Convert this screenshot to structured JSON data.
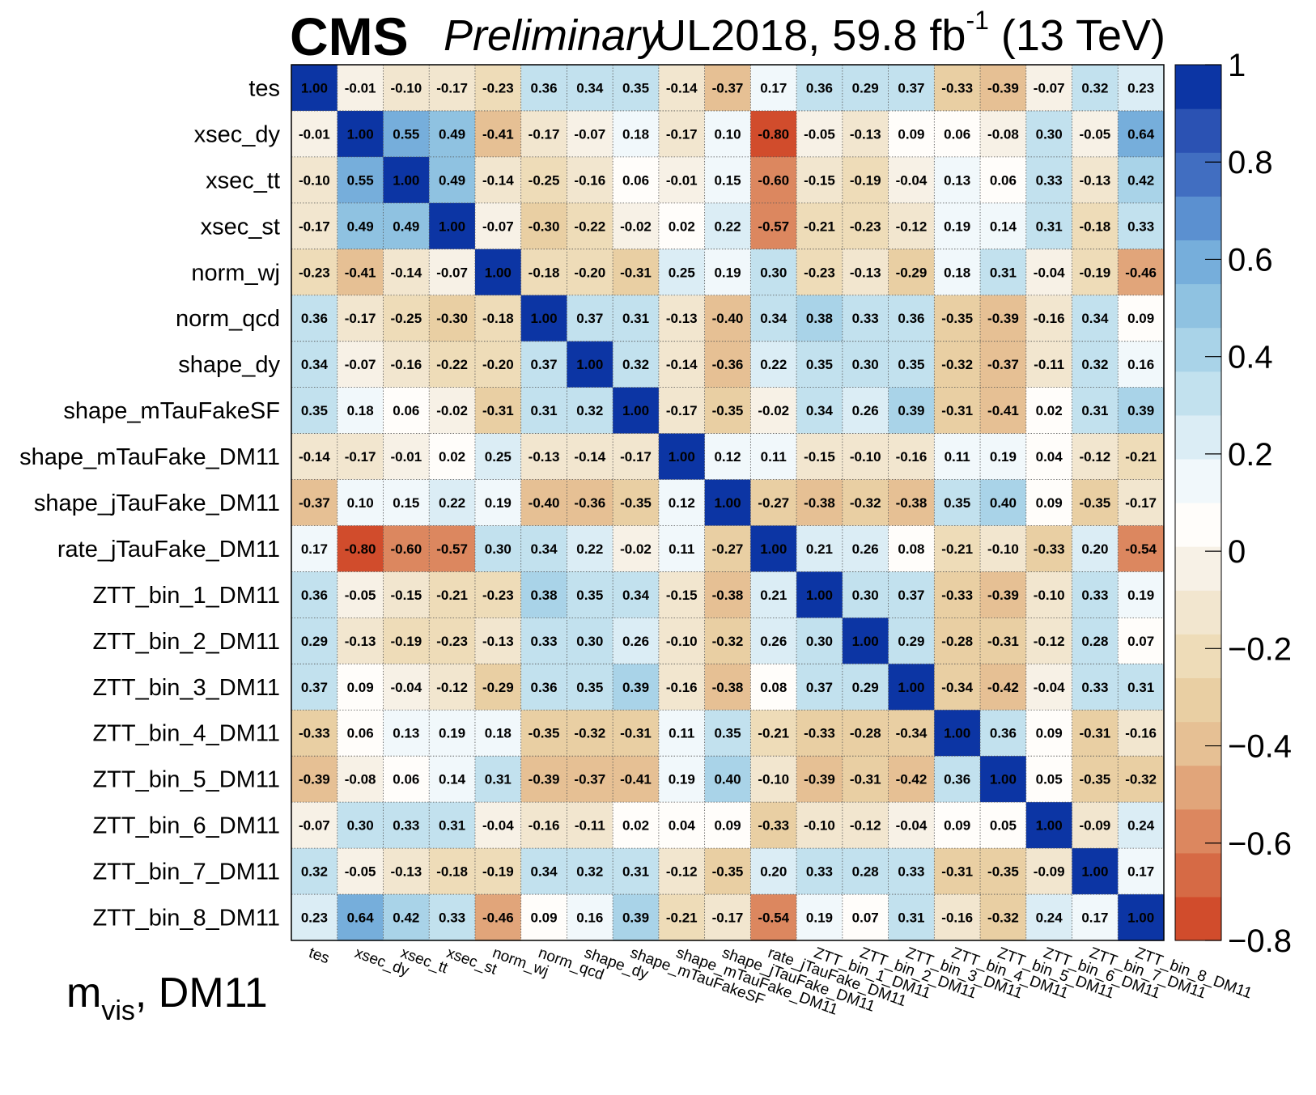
{
  "header": {
    "experiment": "CMS",
    "status": "Preliminary",
    "lumi_main": "UL2018, 59.8 fb",
    "lumi_exp": "-1",
    "lumi_energy": " (13 TeV)"
  },
  "channel": {
    "base": "m",
    "sub": "vis",
    "rest": ", DM11"
  },
  "chart_data": {
    "type": "heatmap",
    "labels": [
      "tes",
      "xsec_dy",
      "xsec_tt",
      "xsec_st",
      "norm_wj",
      "norm_qcd",
      "shape_dy",
      "shape_mTauFakeSF",
      "shape_mTauFake_DM11",
      "shape_jTauFake_DM11",
      "rate_jTauFake_DM11",
      "ZTT_bin_1_DM11",
      "ZTT_bin_2_DM11",
      "ZTT_bin_3_DM11",
      "ZTT_bin_4_DM11",
      "ZTT_bin_5_DM11",
      "ZTT_bin_6_DM11",
      "ZTT_bin_7_DM11",
      "ZTT_bin_8_DM11"
    ],
    "matrix": [
      [
        1.0,
        -0.01,
        -0.1,
        -0.17,
        -0.23,
        0.36,
        0.34,
        0.35,
        -0.14,
        -0.37,
        0.17,
        0.36,
        0.29,
        0.37,
        -0.33,
        -0.39,
        -0.07,
        0.32,
        0.23
      ],
      [
        -0.01,
        1.0,
        0.55,
        0.49,
        -0.41,
        -0.17,
        -0.07,
        0.18,
        -0.17,
        0.1,
        -0.8,
        -0.05,
        -0.13,
        0.09,
        0.06,
        -0.08,
        0.3,
        -0.05,
        0.64
      ],
      [
        -0.1,
        0.55,
        1.0,
        0.49,
        -0.14,
        -0.25,
        -0.16,
        0.06,
        -0.01,
        0.15,
        -0.6,
        -0.15,
        -0.19,
        -0.04,
        0.13,
        0.06,
        0.33,
        -0.13,
        0.42
      ],
      [
        -0.17,
        0.49,
        0.49,
        1.0,
        -0.07,
        -0.3,
        -0.22,
        -0.02,
        0.02,
        0.22,
        -0.57,
        -0.21,
        -0.23,
        -0.12,
        0.19,
        0.14,
        0.31,
        -0.18,
        0.33
      ],
      [
        -0.23,
        -0.41,
        -0.14,
        -0.07,
        1.0,
        -0.18,
        -0.2,
        -0.31,
        0.25,
        0.19,
        0.3,
        -0.23,
        -0.13,
        -0.29,
        0.18,
        0.31,
        -0.04,
        -0.19,
        -0.46
      ],
      [
        0.36,
        -0.17,
        -0.25,
        -0.3,
        -0.18,
        1.0,
        0.37,
        0.31,
        -0.13,
        -0.4,
        0.34,
        0.38,
        0.33,
        0.36,
        -0.35,
        -0.39,
        -0.16,
        0.34,
        0.09
      ],
      [
        0.34,
        -0.07,
        -0.16,
        -0.22,
        -0.2,
        0.37,
        1.0,
        0.32,
        -0.14,
        -0.36,
        0.22,
        0.35,
        0.3,
        0.35,
        -0.32,
        -0.37,
        -0.11,
        0.32,
        0.16
      ],
      [
        0.35,
        0.18,
        0.06,
        -0.02,
        -0.31,
        0.31,
        0.32,
        1.0,
        -0.17,
        -0.35,
        -0.02,
        0.34,
        0.26,
        0.39,
        -0.31,
        -0.41,
        0.02,
        0.31,
        0.39
      ],
      [
        -0.14,
        -0.17,
        -0.01,
        0.02,
        0.25,
        -0.13,
        -0.14,
        -0.17,
        1.0,
        0.12,
        0.11,
        -0.15,
        -0.1,
        -0.16,
        0.11,
        0.19,
        0.04,
        -0.12,
        -0.21
      ],
      [
        -0.37,
        0.1,
        0.15,
        0.22,
        0.19,
        -0.4,
        -0.36,
        -0.35,
        0.12,
        1.0,
        -0.27,
        -0.38,
        -0.32,
        -0.38,
        0.35,
        0.4,
        0.09,
        -0.35,
        -0.17
      ],
      [
        0.17,
        -0.8,
        -0.6,
        -0.57,
        0.3,
        0.34,
        0.22,
        -0.02,
        0.11,
        -0.27,
        1.0,
        0.21,
        0.26,
        0.08,
        -0.21,
        -0.1,
        -0.33,
        0.2,
        -0.54
      ],
      [
        0.36,
        -0.05,
        -0.15,
        -0.21,
        -0.23,
        0.38,
        0.35,
        0.34,
        -0.15,
        -0.38,
        0.21,
        1.0,
        0.3,
        0.37,
        -0.33,
        -0.39,
        -0.1,
        0.33,
        0.19
      ],
      [
        0.29,
        -0.13,
        -0.19,
        -0.23,
        -0.13,
        0.33,
        0.3,
        0.26,
        -0.1,
        -0.32,
        0.26,
        0.3,
        1.0,
        0.29,
        -0.28,
        -0.31,
        -0.12,
        0.28,
        0.07
      ],
      [
        0.37,
        0.09,
        -0.04,
        -0.12,
        -0.29,
        0.36,
        0.35,
        0.39,
        -0.16,
        -0.38,
        0.08,
        0.37,
        0.29,
        1.0,
        -0.34,
        -0.42,
        -0.04,
        0.33,
        0.31
      ],
      [
        -0.33,
        0.06,
        0.13,
        0.19,
        0.18,
        -0.35,
        -0.32,
        -0.31,
        0.11,
        0.35,
        -0.21,
        -0.33,
        -0.28,
        -0.34,
        1.0,
        0.36,
        0.09,
        -0.31,
        -0.16
      ],
      [
        -0.39,
        -0.08,
        0.06,
        0.14,
        0.31,
        -0.39,
        -0.37,
        -0.41,
        0.19,
        0.4,
        -0.1,
        -0.39,
        -0.31,
        -0.42,
        0.36,
        1.0,
        0.05,
        -0.35,
        -0.32
      ],
      [
        -0.07,
        0.3,
        0.33,
        0.31,
        -0.04,
        -0.16,
        -0.11,
        0.02,
        0.04,
        0.09,
        -0.33,
        -0.1,
        -0.12,
        -0.04,
        0.09,
        0.05,
        1.0,
        -0.09,
        0.24
      ],
      [
        0.32,
        -0.05,
        -0.13,
        -0.18,
        -0.19,
        0.34,
        0.32,
        0.31,
        -0.12,
        -0.35,
        0.2,
        0.33,
        0.28,
        0.33,
        -0.31,
        -0.35,
        -0.09,
        1.0,
        0.17
      ],
      [
        0.23,
        0.64,
        0.42,
        0.33,
        -0.46,
        0.09,
        0.16,
        0.39,
        -0.21,
        -0.17,
        -0.54,
        0.19,
        0.07,
        0.31,
        -0.16,
        -0.32,
        0.24,
        0.17,
        1.0
      ]
    ],
    "zlim": [
      -0.8,
      1.0
    ],
    "colorbar_ticks": [
      "1",
      "0.8",
      "0.6",
      "0.4",
      "0.2",
      "0",
      "−0.2",
      "−0.4",
      "−0.6",
      "−0.8"
    ],
    "palette": [
      "#d14c2c",
      "#d66a45",
      "#dc875f",
      "#e1a57a",
      "#e6c094",
      "#e9cfa3",
      "#eedcb8",
      "#f2e6cf",
      "#f7f1e6",
      "#fffdfa",
      "#f1f8fb",
      "#dbedf5",
      "#c2e1ee",
      "#a9d3e8",
      "#8fc2e1",
      "#76aedb",
      "#5b90d0",
      "#416ec1",
      "#2b52b3",
      "#0c35a4"
    ]
  }
}
